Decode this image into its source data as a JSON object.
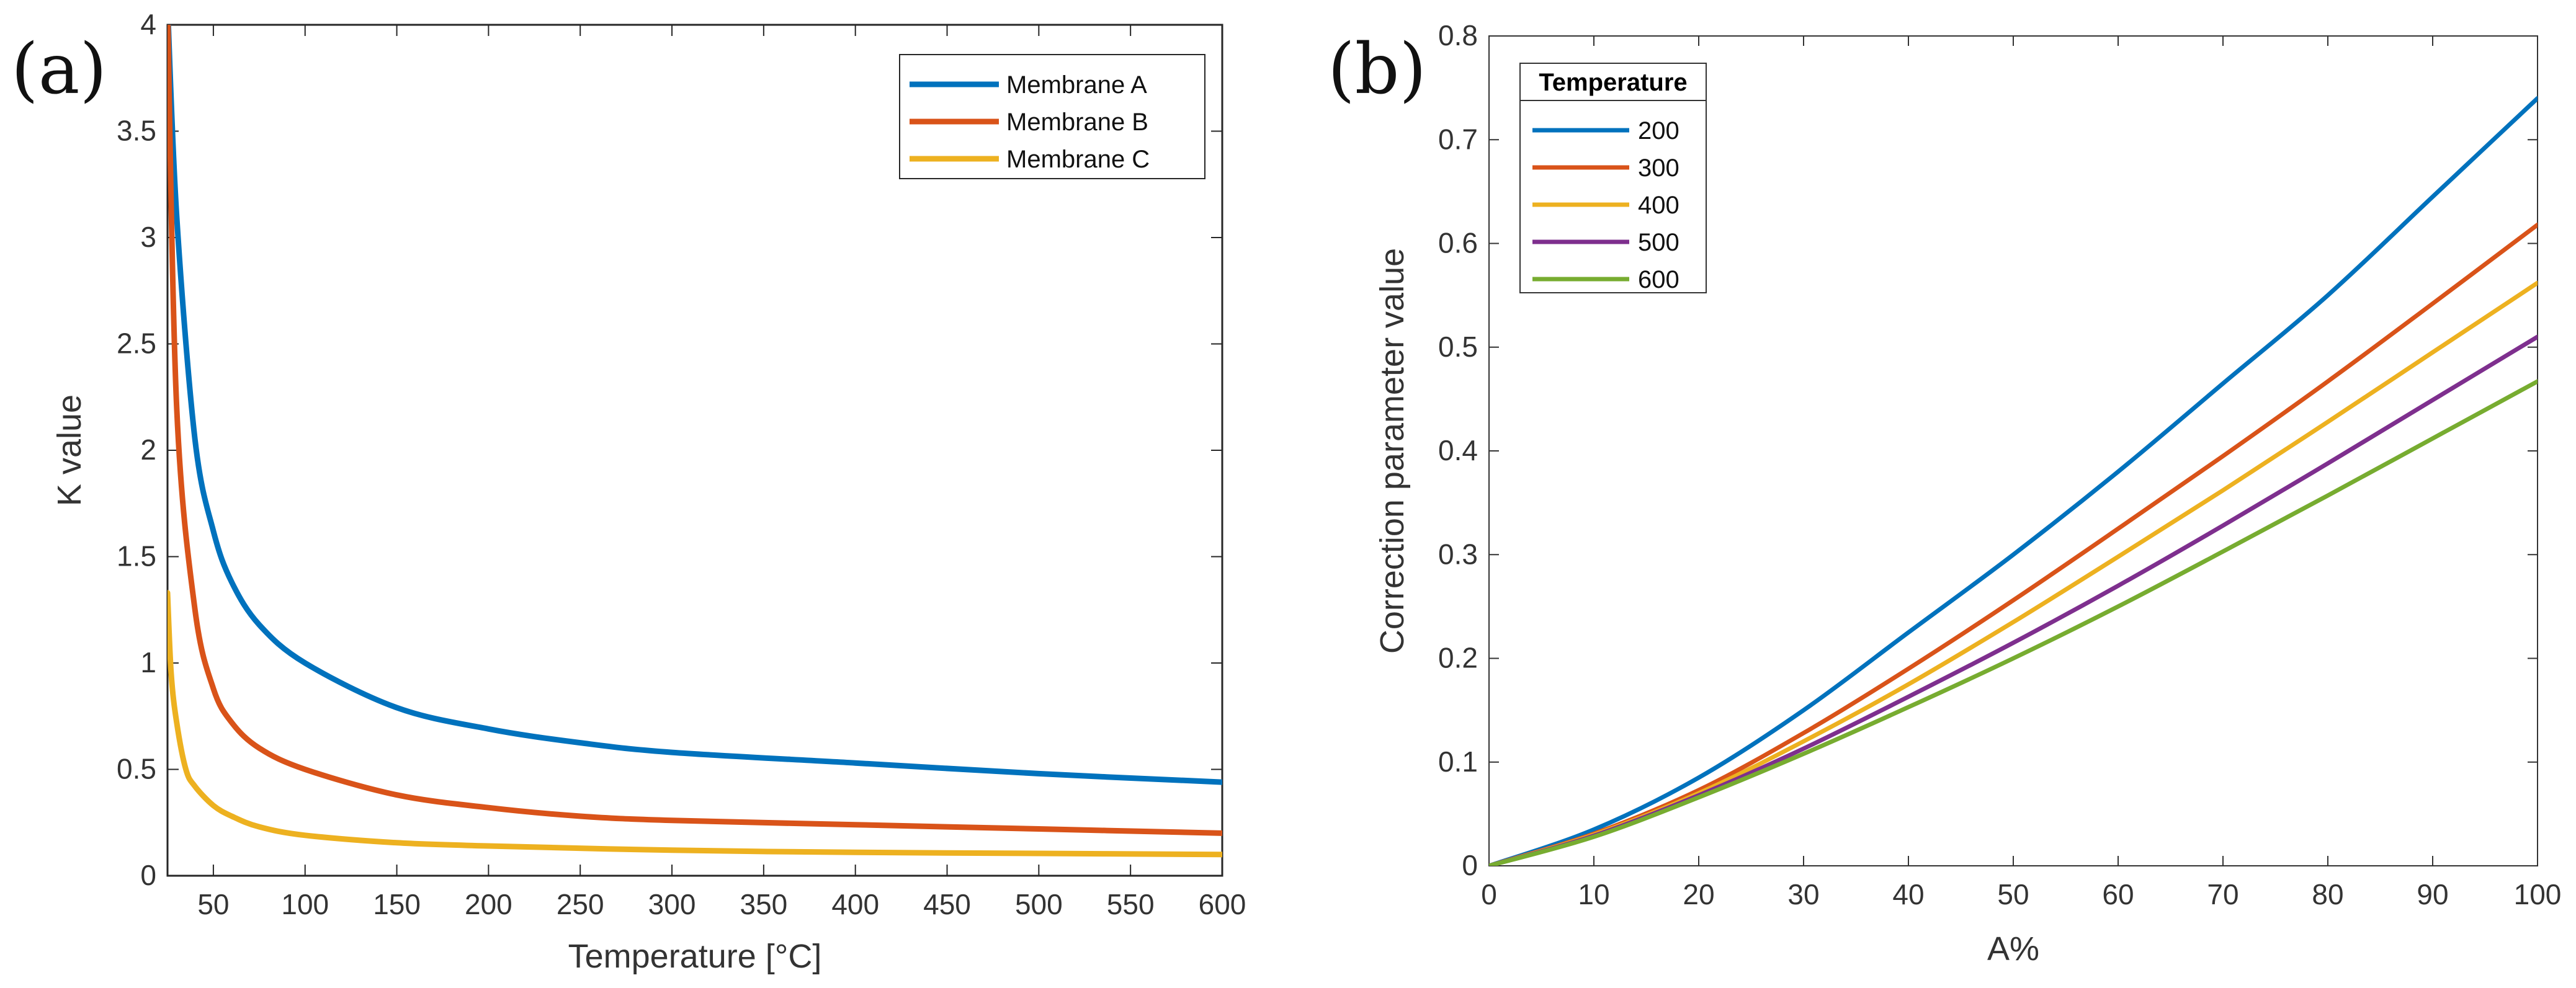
{
  "chart_data": [
    {
      "panel_label": "(a)",
      "type": "line",
      "title": "",
      "xlabel": "Temperature [°C]",
      "ylabel": "K value",
      "xlim": [
        25,
        600
      ],
      "ylim": [
        0,
        4
      ],
      "xticks": [
        50,
        100,
        150,
        200,
        250,
        300,
        350,
        400,
        450,
        500,
        550,
        600
      ],
      "yticks": [
        0,
        0.5,
        1,
        1.5,
        2,
        2.5,
        3,
        3.5,
        4
      ],
      "grid": false,
      "legend": {
        "title": "",
        "placement": "top-right"
      },
      "series": [
        {
          "name": "Membrane A",
          "color": "#0072BD",
          "x": [
            25,
            30,
            40,
            50,
            60,
            75,
            100,
            150,
            200,
            250,
            300,
            400,
            500,
            600
          ],
          "y": [
            4.1,
            3.1,
            2.05,
            1.62,
            1.38,
            1.18,
            1.0,
            0.79,
            0.69,
            0.625,
            0.58,
            0.53,
            0.48,
            0.44
          ]
        },
        {
          "name": "Membrane B",
          "color": "#D95319",
          "x": [
            25,
            30,
            40,
            50,
            60,
            75,
            100,
            150,
            200,
            250,
            300,
            400,
            500,
            600
          ],
          "y": [
            4.1,
            2.2,
            1.25,
            0.88,
            0.72,
            0.6,
            0.5,
            0.38,
            0.32,
            0.28,
            0.26,
            0.24,
            0.22,
            0.2
          ]
        },
        {
          "name": "Membrane C",
          "color": "#EDB120",
          "x": [
            25,
            27,
            30,
            35,
            40,
            50,
            60,
            75,
            100,
            150,
            200,
            300,
            400,
            500,
            600
          ],
          "y": [
            1.33,
            0.95,
            0.72,
            0.5,
            0.42,
            0.33,
            0.28,
            0.23,
            0.19,
            0.155,
            0.14,
            0.12,
            0.11,
            0.105,
            0.1
          ]
        }
      ]
    },
    {
      "panel_label": "(b)",
      "type": "line",
      "title": "",
      "xlabel": "A%",
      "ylabel": "Correction parameter value",
      "xlim": [
        0,
        100
      ],
      "ylim": [
        0,
        0.8
      ],
      "xticks": [
        0,
        10,
        20,
        30,
        40,
        50,
        60,
        70,
        80,
        90,
        100
      ],
      "yticks": [
        0,
        0.1,
        0.2,
        0.3,
        0.4,
        0.5,
        0.6,
        0.7,
        0.8
      ],
      "grid": false,
      "legend": {
        "title": "Temperature",
        "placement": "top-left"
      },
      "series": [
        {
          "name": "200",
          "color": "#0072BD",
          "x": [
            0,
            10,
            20,
            30,
            40,
            50,
            60,
            70,
            80,
            90,
            100
          ],
          "y": [
            0,
            0.035,
            0.085,
            0.15,
            0.225,
            0.3,
            0.38,
            0.465,
            0.55,
            0.645,
            0.74
          ]
        },
        {
          "name": "300",
          "color": "#D95319",
          "x": [
            0,
            10,
            20,
            30,
            40,
            50,
            60,
            70,
            80,
            90,
            100
          ],
          "y": [
            0,
            0.031,
            0.073,
            0.128,
            0.19,
            0.256,
            0.325,
            0.395,
            0.467,
            0.542,
            0.618
          ]
        },
        {
          "name": "400",
          "color": "#EDB120",
          "x": [
            0,
            10,
            20,
            30,
            40,
            50,
            60,
            70,
            80,
            90,
            100
          ],
          "y": [
            0,
            0.03,
            0.07,
            0.12,
            0.175,
            0.235,
            0.298,
            0.362,
            0.428,
            0.495,
            0.562
          ]
        },
        {
          "name": "500",
          "color": "#7E2F8E",
          "x": [
            0,
            10,
            20,
            30,
            40,
            50,
            60,
            70,
            80,
            90,
            100
          ],
          "y": [
            0,
            0.029,
            0.068,
            0.113,
            0.163,
            0.215,
            0.27,
            0.328,
            0.388,
            0.449,
            0.51
          ]
        },
        {
          "name": "600",
          "color": "#77AC30",
          "x": [
            0,
            10,
            20,
            30,
            40,
            50,
            60,
            70,
            80,
            90,
            100
          ],
          "y": [
            0,
            0.028,
            0.066,
            0.108,
            0.153,
            0.2,
            0.25,
            0.303,
            0.357,
            0.412,
            0.467
          ]
        }
      ]
    }
  ]
}
